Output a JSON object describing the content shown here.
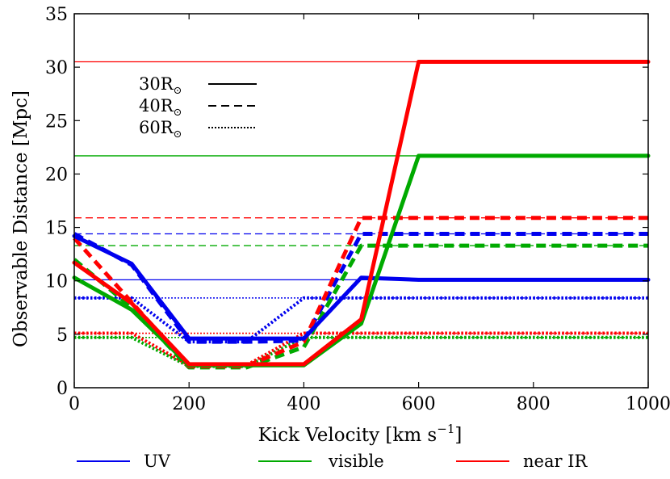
{
  "chart_data": {
    "type": "line",
    "title": "",
    "xlabel": "Kick Velocity [km s",
    "xlabel_sup": "−1",
    "xlabel_tail": "]",
    "ylabel": "Observable Distance [Mpc]",
    "xlim": [
      0,
      1000
    ],
    "ylim": [
      0,
      35
    ],
    "xticks": [
      0,
      200,
      400,
      600,
      800,
      1000
    ],
    "yticks": [
      0,
      5,
      10,
      15,
      20,
      25,
      30,
      35
    ],
    "grid": false,
    "colors": {
      "UV": "#0000ee",
      "visible": "#00aa00",
      "near IR": "#ff0000"
    },
    "style_legend": {
      "placement": "top-left",
      "entries": [
        {
          "label": "30R",
          "sub": "⊙",
          "style": "solid"
        },
        {
          "label": "40R",
          "sub": "⊙",
          "style": "dashed"
        },
        {
          "label": "60R",
          "sub": "⊙",
          "style": "dotted"
        }
      ]
    },
    "band_legend": {
      "placement": "bottom",
      "entries": [
        {
          "label": "UV",
          "band": "UV"
        },
        {
          "label": "visible",
          "band": "visible"
        },
        {
          "label": "near IR",
          "band": "near IR"
        }
      ]
    },
    "reference_lines": [
      {
        "band": "near IR",
        "style": "solid",
        "y": 30.5
      },
      {
        "band": "visible",
        "style": "solid",
        "y": 21.7
      },
      {
        "band": "near IR",
        "style": "dashed",
        "y": 15.9
      },
      {
        "band": "UV",
        "style": "dashed",
        "y": 14.4
      },
      {
        "band": "visible",
        "style": "dashed",
        "y": 13.3
      },
      {
        "band": "UV",
        "style": "solid",
        "y": 10.1
      },
      {
        "band": "UV",
        "style": "dotted",
        "y": 8.4
      },
      {
        "band": "near IR",
        "style": "dotted",
        "y": 5.1
      },
      {
        "band": "visible",
        "style": "dotted",
        "y": 4.7
      }
    ],
    "series": [
      {
        "band": "UV",
        "style": "dotted",
        "x": [
          0,
          100,
          200,
          300,
          400,
          500,
          600,
          700,
          800,
          900,
          1000
        ],
        "y": [
          8.4,
          8.4,
          4.3,
          4.3,
          8.4,
          8.4,
          8.4,
          8.4,
          8.4,
          8.4,
          8.4
        ]
      },
      {
        "band": "visible",
        "style": "dotted",
        "x": [
          0,
          100,
          200,
          300,
          400,
          500,
          600,
          700,
          800,
          900,
          1000
        ],
        "y": [
          4.7,
          4.7,
          2.0,
          2.0,
          4.7,
          4.7,
          4.7,
          4.7,
          4.7,
          4.7,
          4.7
        ]
      },
      {
        "band": "near IR",
        "style": "dotted",
        "x": [
          0,
          100,
          200,
          300,
          400,
          500,
          600,
          700,
          800,
          900,
          1000
        ],
        "y": [
          5.1,
          5.1,
          2.1,
          2.1,
          5.1,
          5.1,
          5.1,
          5.1,
          5.1,
          5.1,
          5.1
        ]
      },
      {
        "band": "UV",
        "style": "dashed",
        "x": [
          0,
          100,
          200,
          300,
          400,
          500,
          600,
          700,
          800,
          900,
          1000
        ],
        "y": [
          14.4,
          11.5,
          4.3,
          4.3,
          4.4,
          14.4,
          14.4,
          14.4,
          14.4,
          14.4,
          14.4
        ]
      },
      {
        "band": "visible",
        "style": "dashed",
        "x": [
          0,
          100,
          200,
          300,
          400,
          500,
          600,
          700,
          800,
          900,
          1000
        ],
        "y": [
          12.0,
          7.5,
          1.9,
          1.9,
          3.8,
          13.3,
          13.3,
          13.3,
          13.3,
          13.3,
          13.3
        ]
      },
      {
        "band": "near IR",
        "style": "dashed",
        "x": [
          0,
          100,
          200,
          300,
          400,
          500,
          600,
          700,
          800,
          900,
          1000
        ],
        "y": [
          14.0,
          8.0,
          2.0,
          2.0,
          4.3,
          15.9,
          15.9,
          15.9,
          15.9,
          15.9,
          15.9
        ]
      },
      {
        "band": "UV",
        "style": "solid",
        "x": [
          0,
          100,
          200,
          300,
          400,
          500,
          600,
          700,
          800,
          900,
          1000
        ],
        "y": [
          14.2,
          11.6,
          4.6,
          4.6,
          4.6,
          10.3,
          10.1,
          10.1,
          10.1,
          10.1,
          10.1
        ]
      },
      {
        "band": "visible",
        "style": "solid",
        "x": [
          0,
          100,
          200,
          300,
          400,
          500,
          600,
          700,
          800,
          900,
          1000
        ],
        "y": [
          10.3,
          7.3,
          2.1,
          2.1,
          2.1,
          6.0,
          21.7,
          21.7,
          21.7,
          21.7,
          21.7
        ]
      },
      {
        "band": "near IR",
        "style": "solid",
        "x": [
          0,
          100,
          200,
          300,
          400,
          500,
          600,
          700,
          800,
          900,
          1000
        ],
        "y": [
          11.7,
          7.9,
          2.2,
          2.2,
          2.2,
          6.4,
          30.5,
          30.5,
          30.5,
          30.5,
          30.5
        ]
      }
    ]
  }
}
